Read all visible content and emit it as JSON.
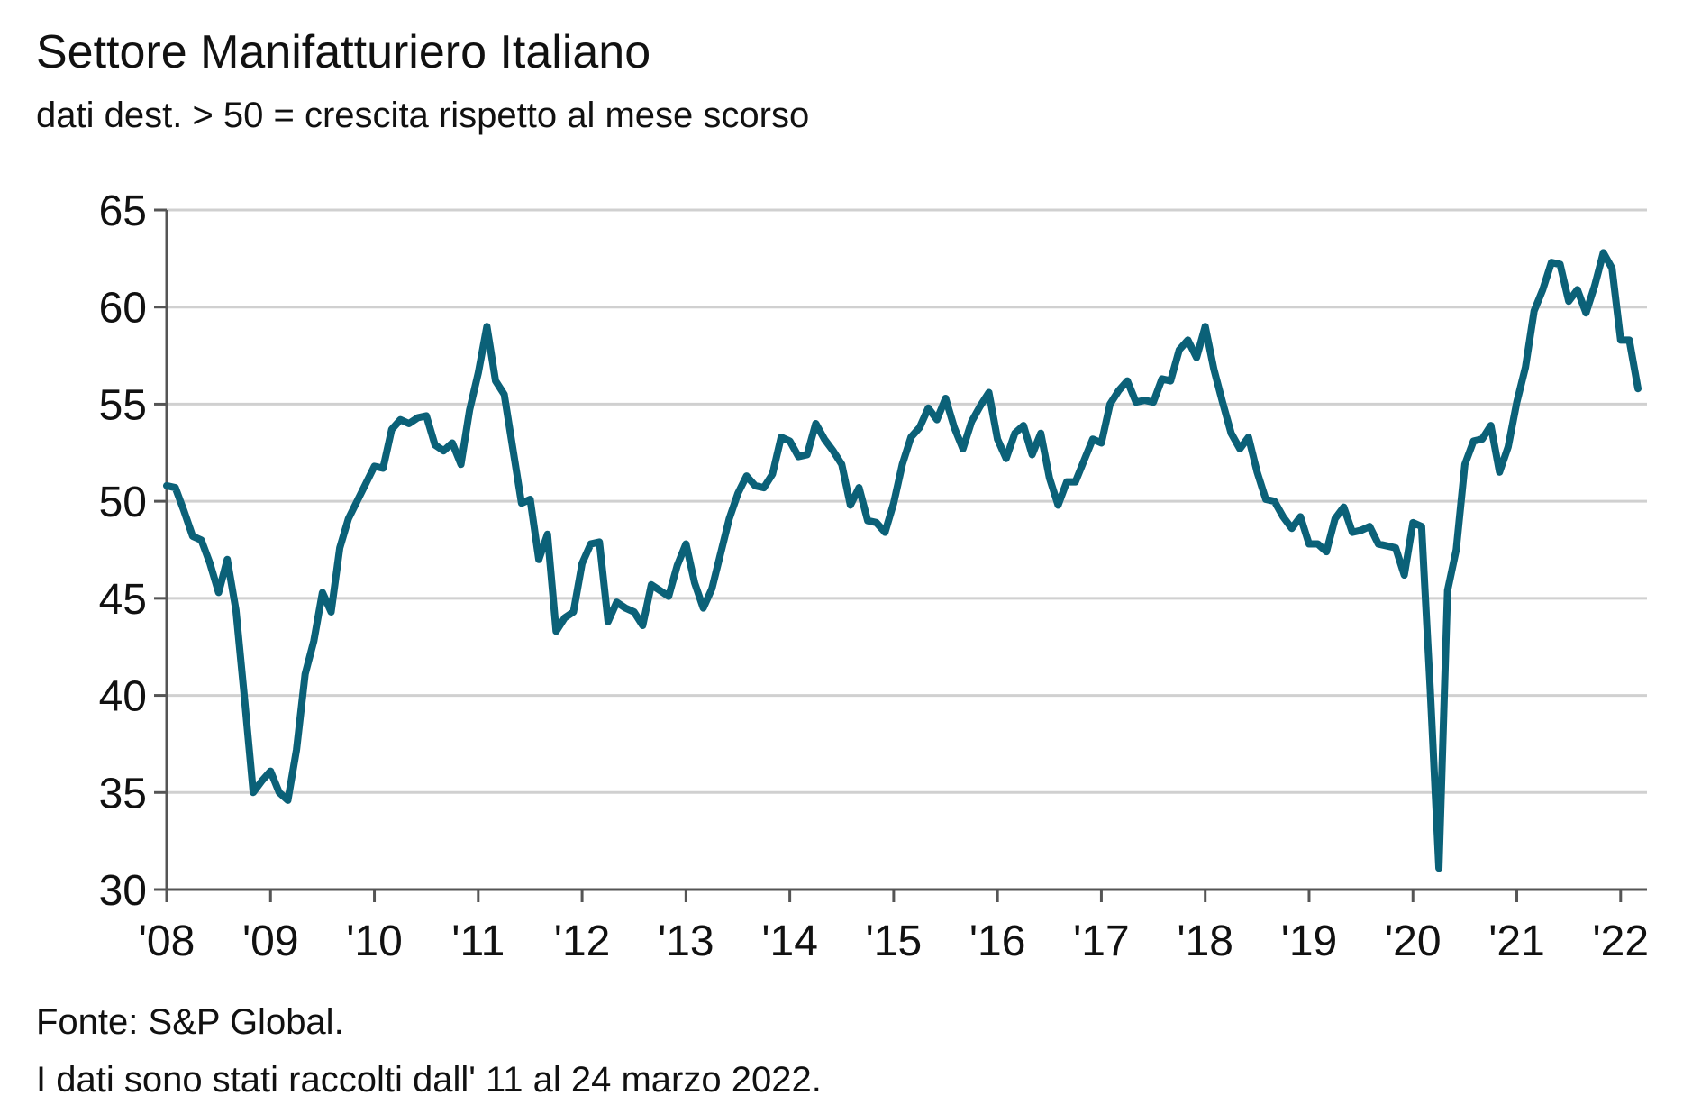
{
  "header": {
    "title": "Settore Manifatturiero Italiano",
    "subtitle": "dati dest. > 50 = crescita rispetto al mese scorso"
  },
  "footer": {
    "source": "Fonte: S&P Global.",
    "note": "I dati sono stati raccolti dall' 11 al 24 marzo 2022."
  },
  "colors": {
    "line": "#0b6178",
    "grid": "#d0d0d0",
    "axis": "#555555"
  },
  "chart_data": {
    "type": "line",
    "grid": true,
    "ylim": [
      30,
      65
    ],
    "yticks": [
      30,
      35,
      40,
      45,
      50,
      55,
      60,
      65
    ],
    "xticks": [
      "'08",
      "'09",
      "'10",
      "'11",
      "'12",
      "'13",
      "'14",
      "'15",
      "'16",
      "'17",
      "'18",
      "'19",
      "'20",
      "'21",
      "'22"
    ],
    "x_start": "2008-01",
    "x_end": "2022-03",
    "series": [
      {
        "values": [
          50.8,
          50.7,
          49.5,
          48.2,
          48.0,
          46.8,
          45.3,
          47.0,
          44.4,
          39.8,
          35.0,
          35.6,
          36.1,
          35.0,
          34.6,
          37.2,
          41.1,
          42.8,
          45.3,
          44.3,
          47.6,
          49.1,
          50.0,
          50.9,
          51.8,
          51.7,
          53.7,
          54.2,
          54.0,
          54.3,
          54.4,
          52.9,
          52.6,
          53.0,
          51.9,
          54.7,
          56.6,
          59.0,
          56.2,
          55.5,
          52.7,
          49.9,
          50.1,
          47.0,
          48.3,
          43.3,
          44.0,
          44.3,
          46.8,
          47.8,
          47.9,
          43.8,
          44.8,
          44.5,
          44.3,
          43.6,
          45.7,
          45.4,
          45.1,
          46.7,
          47.8,
          45.8,
          44.5,
          45.5,
          47.3,
          49.1,
          50.4,
          51.3,
          50.8,
          50.7,
          51.4,
          53.3,
          53.1,
          52.3,
          52.4,
          54.0,
          53.2,
          52.6,
          51.9,
          49.8,
          50.7,
          49.0,
          48.9,
          48.4,
          49.9,
          51.9,
          53.3,
          53.8,
          54.8,
          54.2,
          55.3,
          53.8,
          52.7,
          54.1,
          54.9,
          55.6,
          53.2,
          52.2,
          53.5,
          53.9,
          52.4,
          53.5,
          51.2,
          49.8,
          51.0,
          51.0,
          52.1,
          53.2,
          53.0,
          55.0,
          55.7,
          56.2,
          55.1,
          55.2,
          55.1,
          56.3,
          56.2,
          57.8,
          58.3,
          57.4,
          59.0,
          56.8,
          55.1,
          53.5,
          52.7,
          53.3,
          51.5,
          50.1,
          50.0,
          49.2,
          48.6,
          49.2,
          47.8,
          47.8,
          47.4,
          49.1,
          49.7,
          48.4,
          48.5,
          48.7,
          47.8,
          47.7,
          47.6,
          46.2,
          48.9,
          48.7,
          40.3,
          31.1,
          45.4,
          47.5,
          51.9,
          53.1,
          53.2,
          53.9,
          51.5,
          52.8,
          55.1,
          56.9,
          59.8,
          60.9,
          62.3,
          62.2,
          60.3,
          60.9,
          59.7,
          61.1,
          62.8,
          62.0,
          58.3,
          58.3,
          55.8
        ]
      }
    ]
  }
}
